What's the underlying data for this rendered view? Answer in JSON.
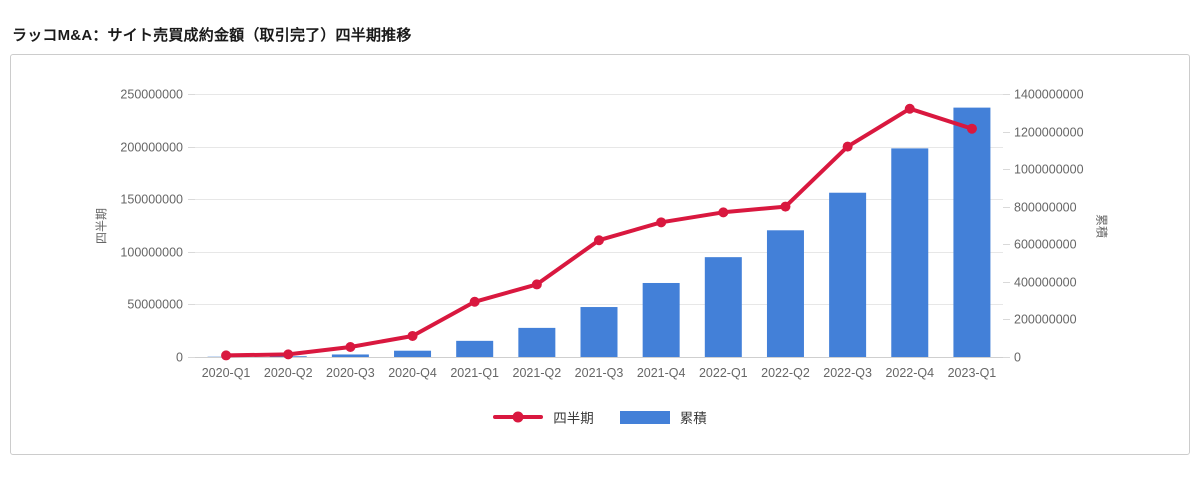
{
  "page": {
    "title": "ラッコM&A：サイト売買成約金額（取引完了）四半期推移"
  },
  "chart_data": {
    "type": "combo-line-bar",
    "categories": [
      "2020-Q1",
      "2020-Q2",
      "2020-Q3",
      "2020-Q4",
      "2021-Q1",
      "2021-Q2",
      "2021-Q3",
      "2021-Q4",
      "2022-Q1",
      "2022-Q2",
      "2022-Q3",
      "2022-Q4",
      "2023-Q1"
    ],
    "series": [
      {
        "name": "四半期",
        "type": "line",
        "axis": "left",
        "color": "#d9183f",
        "values": [
          1500000,
          2500000,
          9500000,
          20000000,
          52500000,
          69000000,
          111000000,
          128000000,
          137500000,
          143000000,
          200000000,
          236000000,
          217000000
        ]
      },
      {
        "name": "累積",
        "type": "bar",
        "axis": "right",
        "color": "#4380d8",
        "values": [
          1500000,
          4000000,
          13500000,
          33500000,
          86000000,
          155000000,
          266000000,
          394000000,
          531500000,
          674500000,
          874500000,
          1110500000,
          1327500000
        ]
      }
    ],
    "left_axis": {
      "title": "四半期",
      "min": 0,
      "max": 250000000,
      "step": 50000000,
      "ticks": [
        "0",
        "50000000",
        "100000000",
        "150000000",
        "200000000",
        "250000000"
      ]
    },
    "right_axis": {
      "title": "累積",
      "min": 0,
      "max": 1400000000,
      "step": 200000000,
      "ticks": [
        "0",
        "200000000",
        "400000000",
        "600000000",
        "800000000",
        "1000000000",
        "1200000000",
        "1400000000"
      ]
    },
    "legend_position": "bottom",
    "grid": "horizontal-left-axis-only",
    "colors": {
      "grid_line": "#e7e7e7",
      "zero_line": "#cfcfcf",
      "tick_mark": "#d9d9d9",
      "tick_text": "#666666",
      "panel_border": "#cccccc"
    }
  }
}
